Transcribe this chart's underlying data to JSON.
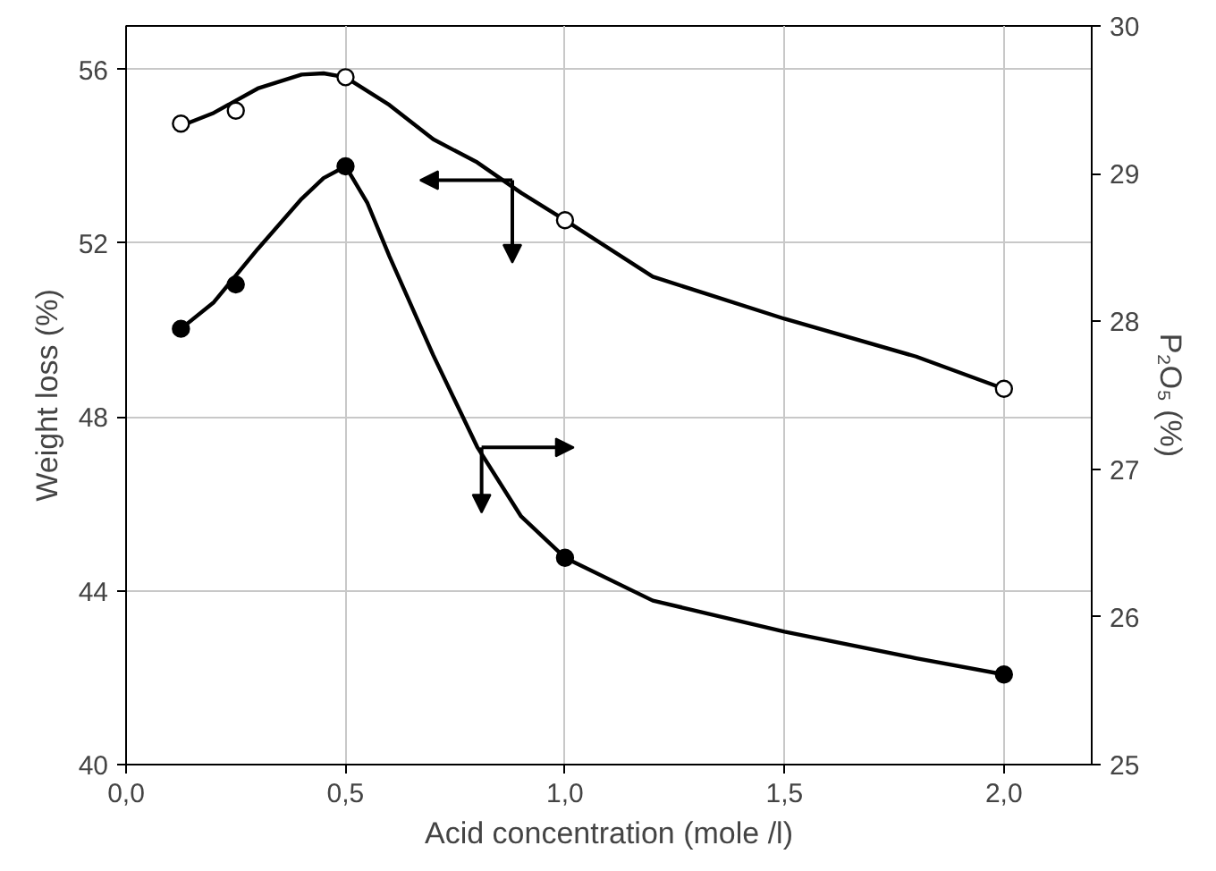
{
  "chart_data": {
    "type": "line",
    "xlabel": "Acid concentration (mole /l)",
    "ylabel": "Weight loss (%)",
    "y2label": "P₂O₅ (%)",
    "xlim": [
      0,
      2.2
    ],
    "xticks": [
      {
        "value": 0,
        "label": "0,0"
      },
      {
        "value": 0.5,
        "label": "0,5"
      },
      {
        "value": 1,
        "label": "1,0"
      },
      {
        "value": 1.5,
        "label": "1,5"
      },
      {
        "value": 2,
        "label": "2,0"
      }
    ],
    "ylim": [
      40,
      57
    ],
    "yticks": [
      40,
      44,
      48,
      52,
      56
    ],
    "y2lim": [
      25,
      30
    ],
    "y2ticks": [
      25,
      26,
      27,
      28,
      29,
      30
    ],
    "grid": true,
    "line_style": "solid",
    "x": [
      0.125,
      0.25,
      0.5,
      1.0,
      2.0
    ],
    "series": [
      {
        "color": "#000000",
        "marker": "none",
        "x": [
          0.125,
          0.2,
          0.3,
          0.4,
          0.45,
          0.5,
          0.6,
          0.7,
          0.8,
          0.9,
          1.0,
          1.2,
          1.5,
          1.8,
          2.0
        ],
        "values": [
          54.7,
          55.0,
          55.56,
          55.88,
          55.91,
          55.82,
          55.18,
          54.39,
          53.86,
          53.16,
          52.53,
          51.23,
          50.26,
          49.39,
          48.65
        ]
      },
      {
        "type": "scatter",
        "color": "#000000",
        "marker": "circle_open",
        "values": [
          54.75,
          55.05,
          55.82,
          52.53,
          48.65
        ]
      },
      {
        "color": "#000000",
        "marker": "none",
        "axis": "y2",
        "x": [
          0.125,
          0.2,
          0.3,
          0.4,
          0.45,
          0.5,
          0.55,
          0.6,
          0.7,
          0.8,
          0.9,
          1.0,
          1.2,
          1.5,
          1.8,
          2.0
        ],
        "values": [
          27.95,
          28.13,
          28.49,
          28.83,
          28.97,
          29.05,
          28.8,
          28.44,
          27.77,
          27.15,
          26.68,
          26.4,
          26.11,
          25.9,
          25.72,
          25.61
        ]
      },
      {
        "type": "scatter",
        "color": "#000000",
        "marker": "circle",
        "axis": "y2",
        "values": [
          27.95,
          28.25,
          29.05,
          26.4,
          25.61
        ]
      }
    ]
  }
}
